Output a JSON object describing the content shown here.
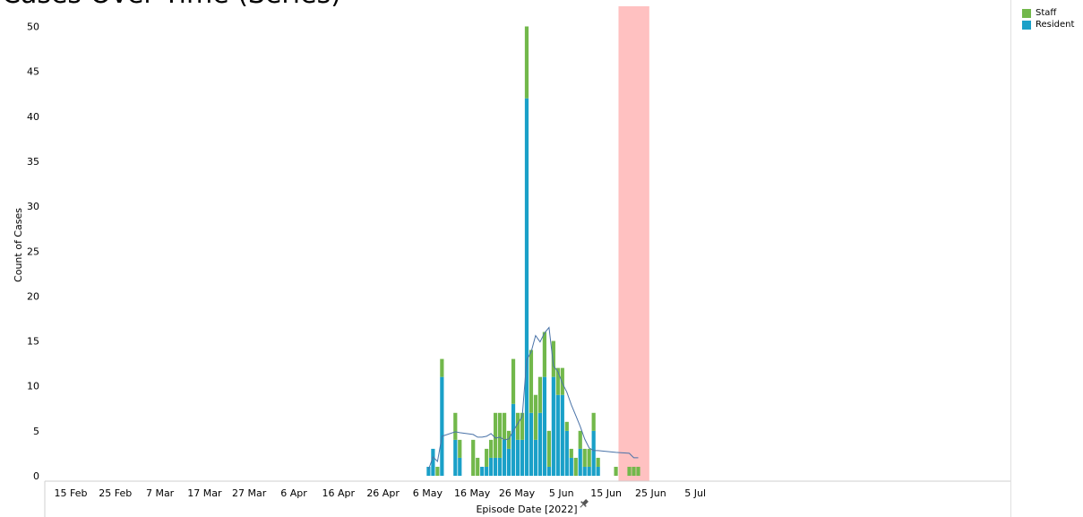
{
  "page": {
    "title_fragment": "Cases Over Time (Series)"
  },
  "colors": {
    "staff": "#72b84b",
    "resident": "#1aa0c8",
    "trend": "#4a73a8",
    "highlight": "#ffc1c1"
  },
  "pin_icon": "pin-icon",
  "chart_data": {
    "type": "bar",
    "stacked": true,
    "xlabel": "Episode Date [2022]",
    "ylabel": "Count of Cases",
    "ylim": [
      0,
      52
    ],
    "yticks": [
      0,
      5,
      10,
      15,
      20,
      25,
      30,
      35,
      40,
      45,
      50
    ],
    "xlim": [
      "2022-02-12",
      "2022-07-05"
    ],
    "xticks": [
      {
        "date": "2022-02-15",
        "label": "15 Feb"
      },
      {
        "date": "2022-02-25",
        "label": "25 Feb"
      },
      {
        "date": "2022-03-07",
        "label": "7 Mar"
      },
      {
        "date": "2022-03-17",
        "label": "17 Mar"
      },
      {
        "date": "2022-03-27",
        "label": "27 Mar"
      },
      {
        "date": "2022-04-06",
        "label": "6 Apr"
      },
      {
        "date": "2022-04-16",
        "label": "16 Apr"
      },
      {
        "date": "2022-04-26",
        "label": "26 Apr"
      },
      {
        "date": "2022-05-06",
        "label": "6 May"
      },
      {
        "date": "2022-05-16",
        "label": "16 May"
      },
      {
        "date": "2022-05-26",
        "label": "26 May"
      },
      {
        "date": "2022-06-05",
        "label": "5 Jun"
      },
      {
        "date": "2022-06-15",
        "label": "15 Jun"
      },
      {
        "date": "2022-06-25",
        "label": "25 Jun"
      },
      {
        "date": "2022-07-05",
        "label": "5 Jul"
      }
    ],
    "legend": [
      "Staff",
      "Resident"
    ],
    "highlight_range": [
      "2022-06-21",
      "2022-06-27"
    ],
    "x": [
      "2022-05-09",
      "2022-05-10",
      "2022-05-11",
      "2022-05-12",
      "2022-05-15",
      "2022-05-16",
      "2022-05-19",
      "2022-05-20",
      "2022-05-21",
      "2022-05-22",
      "2022-05-23",
      "2022-05-24",
      "2022-05-25",
      "2022-05-26",
      "2022-05-27",
      "2022-05-28",
      "2022-05-29",
      "2022-05-30",
      "2022-05-31",
      "2022-06-01",
      "2022-06-02",
      "2022-06-03",
      "2022-06-04",
      "2022-06-05",
      "2022-06-06",
      "2022-06-07",
      "2022-06-08",
      "2022-06-09",
      "2022-06-10",
      "2022-06-11",
      "2022-06-12",
      "2022-06-13",
      "2022-06-14",
      "2022-06-15",
      "2022-06-16",
      "2022-06-20",
      "2022-06-23",
      "2022-06-24",
      "2022-06-25"
    ],
    "series": [
      {
        "name": "Resident",
        "values": [
          1,
          3,
          0,
          11,
          4,
          2,
          0,
          0,
          1,
          1,
          2,
          2,
          2,
          4,
          3,
          8,
          4,
          4,
          42,
          7,
          4,
          7,
          11,
          1,
          11,
          9,
          9,
          5,
          2,
          0,
          3,
          1,
          1,
          5,
          1,
          0,
          0,
          0,
          0
        ]
      },
      {
        "name": "Staff",
        "values": [
          0,
          0,
          1,
          2,
          3,
          2,
          4,
          2,
          0,
          2,
          2,
          5,
          5,
          3,
          2,
          5,
          3,
          3,
          8,
          7,
          5,
          4,
          5,
          4,
          4,
          3,
          3,
          1,
          1,
          2,
          2,
          2,
          2,
          2,
          1,
          1,
          1,
          1,
          1
        ]
      }
    ],
    "trend": {
      "x": [
        "2022-05-09",
        "2022-05-10",
        "2022-05-11",
        "2022-05-12",
        "2022-05-15",
        "2022-05-16",
        "2022-05-19",
        "2022-05-20",
        "2022-05-21",
        "2022-05-22",
        "2022-05-23",
        "2022-05-24",
        "2022-05-25",
        "2022-05-26",
        "2022-05-27",
        "2022-05-28",
        "2022-05-29",
        "2022-05-30",
        "2022-05-31",
        "2022-06-01",
        "2022-06-02",
        "2022-06-03",
        "2022-06-04",
        "2022-06-05",
        "2022-06-06",
        "2022-06-07",
        "2022-06-08",
        "2022-06-09",
        "2022-06-10",
        "2022-06-11",
        "2022-06-12",
        "2022-06-13",
        "2022-06-14",
        "2022-06-15",
        "2022-06-16",
        "2022-06-20",
        "2022-06-23",
        "2022-06-24",
        "2022-06-25"
      ],
      "values": [
        0.7,
        2.1,
        1.6,
        4.4,
        4.9,
        4.8,
        4.6,
        4.3,
        4.3,
        4.4,
        4.7,
        4.2,
        4.3,
        4.0,
        4.1,
        5.0,
        5.8,
        6.6,
        12.9,
        13.8,
        15.6,
        14.9,
        15.9,
        16.5,
        12.2,
        11.6,
        10.3,
        9.3,
        7.9,
        6.7,
        5.5,
        4.1,
        3.1,
        2.8,
        2.8,
        2.6,
        2.5,
        2.0,
        2.0
      ]
    }
  }
}
